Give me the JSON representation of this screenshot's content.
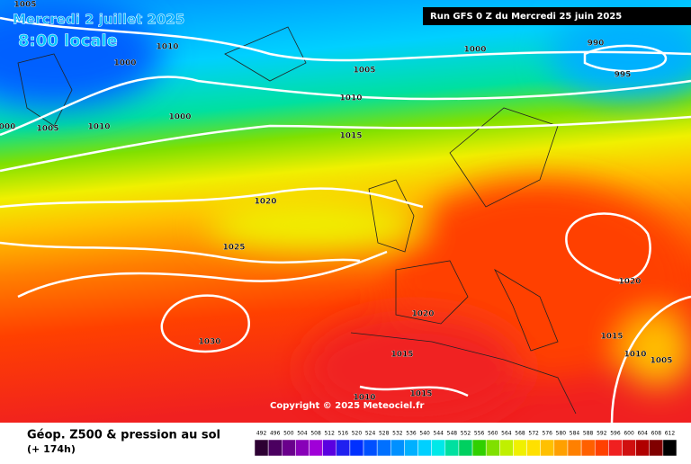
{
  "header": {
    "date": "Mercredi 2 juillet 2025",
    "time": "8:00 locale",
    "run": "Run GFS 0 Z du Mercredi 25 juin 2025"
  },
  "isobar_labels": [
    "1005",
    "1010",
    "1000",
    "1005",
    "1000",
    "990",
    "995",
    "1010",
    "1000",
    "000",
    "1005",
    "1010",
    "1015",
    "1020",
    "1025",
    "1020",
    "1020",
    "1030",
    "1015",
    "1015",
    "1010",
    "1005",
    "1010",
    "1015"
  ],
  "copyright": "Copyright © 2025 Meteociel.fr",
  "footer": {
    "title": "Géop. Z500 & pression au sol",
    "lead": "(+ 174h)"
  },
  "legend": {
    "labels": [
      "492",
      "496",
      "500",
      "504",
      "508",
      "512",
      "516",
      "520",
      "524",
      "528",
      "532",
      "536",
      "540",
      "544",
      "548",
      "552",
      "556",
      "560",
      "564",
      "568",
      "572",
      "576",
      "580",
      "584",
      "588",
      "592",
      "596",
      "600",
      "604",
      "608",
      "612"
    ],
    "colors": [
      "#2d0033",
      "#4b0060",
      "#6a008c",
      "#8800b8",
      "#a000d8",
      "#5a00e0",
      "#2020f0",
      "#0030ff",
      "#0050ff",
      "#0070ff",
      "#0090ff",
      "#00b0ff",
      "#00d0ff",
      "#00e8e8",
      "#00e0a0",
      "#00d060",
      "#30d000",
      "#80e000",
      "#c0f000",
      "#f0f000",
      "#ffe000",
      "#ffc000",
      "#ffa000",
      "#ff8000",
      "#ff6000",
      "#ff4000",
      "#f02020",
      "#d01010",
      "#b00000",
      "#800000",
      "#000000"
    ]
  }
}
